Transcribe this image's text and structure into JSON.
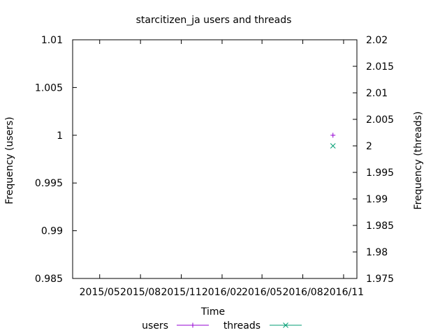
{
  "chart_data": {
    "type": "scatter",
    "title": "starcitizen_ja users and threads",
    "xlabel": "Time",
    "ylabel": "Frequency (users)",
    "y2label": "Frequency (threads)",
    "x_range": [
      "2015-03-01",
      "2016-12-01"
    ],
    "x_ticks": [
      "2015/05",
      "2015/08",
      "2015/11",
      "2016/02",
      "2016/05",
      "2016/08",
      "2016/11"
    ],
    "x_tick_dates": [
      "2015-05-01",
      "2015-08-01",
      "2015-11-01",
      "2016-02-01",
      "2016-05-01",
      "2016-08-01",
      "2016-11-01"
    ],
    "ylim": [
      0.985,
      1.01
    ],
    "y_ticks": [
      "0.985",
      "0.99",
      "0.995",
      "1",
      "1.005",
      "1.01"
    ],
    "y2lim": [
      1.975,
      2.02
    ],
    "y2_ticks": [
      "1.975",
      "1.98",
      "1.985",
      "1.99",
      "1.995",
      "2",
      "2.005",
      "2.01",
      "2.015",
      "2.02"
    ],
    "grid": false,
    "legend_position": "bottom-center",
    "series": [
      {
        "name": "users",
        "axis": "y",
        "marker": "plus",
        "color": "#9400d3",
        "points": [
          {
            "x": "2016-10-08",
            "y": 1
          }
        ]
      },
      {
        "name": "threads",
        "axis": "y2",
        "marker": "cross",
        "color": "#009e73",
        "points": [
          {
            "x": "2016-10-08",
            "y": 2
          }
        ]
      }
    ]
  }
}
